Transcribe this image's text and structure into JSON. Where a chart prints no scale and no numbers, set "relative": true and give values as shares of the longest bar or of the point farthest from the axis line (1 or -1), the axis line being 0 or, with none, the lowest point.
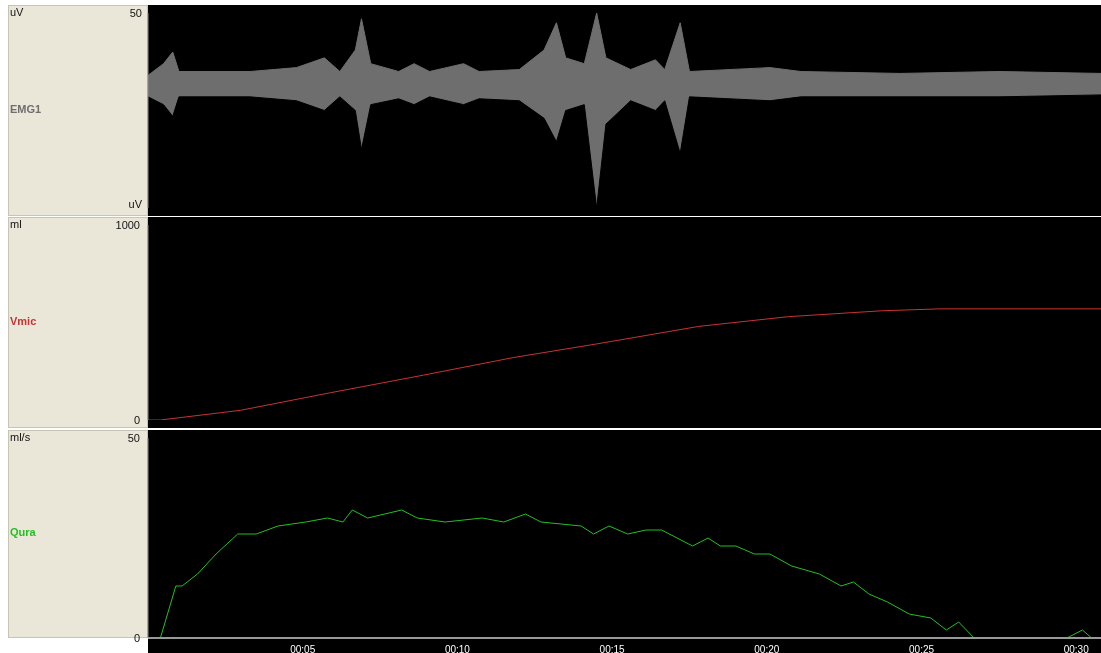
{
  "chart_data": [
    {
      "type": "area",
      "relative": true,
      "ylabel": "uV",
      "annotations": [
        "50",
        "uV"
      ],
      "tick_labels": false,
      "xlim": [
        0,
        30.8
      ],
      "x": [
        0,
        0.5,
        0.8,
        1,
        3.3,
        4.8,
        5.7,
        6.2,
        6.7,
        6.9,
        7.2,
        8.1,
        8.6,
        9.1,
        10.2,
        10.7,
        12,
        12.8,
        13.2,
        13.5,
        14.1,
        14.5,
        14.8,
        15.6,
        16.4,
        16.7,
        17.2,
        17.5,
        20.1,
        21.1,
        24.3,
        27.5,
        30.8
      ],
      "series": [
        {
          "name": "EMG1",
          "color": "#6e6e6e",
          "values": [
            0.68,
            0.74,
            0.8,
            0.7,
            0.7,
            0.72,
            0.77,
            0.7,
            0.81,
            0.97,
            0.74,
            0.7,
            0.74,
            0.7,
            0.74,
            0.7,
            0.71,
            0.81,
            0.95,
            0.77,
            0.74,
            1,
            0.77,
            0.71,
            0.76,
            0.71,
            0.95,
            0.7,
            0.72,
            0.7,
            0.69,
            0.7,
            0.69
          ]
        },
        {
          "color": "#000000",
          "values": [
            0.57,
            0.53,
            0.47,
            0.57,
            0.57,
            0.55,
            0.5,
            0.57,
            0.5,
            0.3,
            0.53,
            0.56,
            0.53,
            0.57,
            0.53,
            0.56,
            0.55,
            0.46,
            0.34,
            0.5,
            0.53,
            0,
            0.43,
            0.55,
            0.5,
            0.55,
            0.28,
            0.57,
            0.55,
            0.57,
            0.57,
            0.57,
            0.58
          ]
        }
      ]
    },
    {
      "type": "line",
      "ylabel": "ml",
      "ylim": [
        0,
        1000
      ],
      "yticks": [
        0,
        1000
      ],
      "xlim": [
        0,
        30.8
      ],
      "tick_labels": "y",
      "x": [
        0,
        0.4,
        3,
        5.9,
        8.9,
        11.8,
        14.5,
        17.8,
        20.7,
        23.7,
        25.6,
        30.8
      ],
      "series": [
        {
          "name": "Vmic",
          "color": "#c83232",
          "values": [
            0,
            0,
            50,
            140,
            230,
            320,
            390,
            480,
            530,
            560,
            570,
            570
          ]
        }
      ]
    },
    {
      "type": "line",
      "ylabel": "ml/s",
      "ylim": [
        0,
        50
      ],
      "yticks": [
        0,
        50
      ],
      "xlim": [
        0,
        30.8
      ],
      "xticks": [
        {
          "value": 5,
          "label": "00:05"
        },
        {
          "value": 10,
          "label": "00:10"
        },
        {
          "value": 15,
          "label": "00:15"
        },
        {
          "value": 20,
          "label": "00:20"
        },
        {
          "value": 25,
          "label": "00:25"
        },
        {
          "value": 30,
          "label": "00:30"
        }
      ],
      "x": [
        0,
        0.4,
        0.9,
        1.1,
        1.6,
        2.2,
        2.9,
        3.5,
        4.2,
        5.1,
        5.8,
        6.3,
        6.6,
        7.1,
        8.2,
        8.7,
        9.6,
        10.8,
        11.5,
        12.2,
        12.7,
        14,
        14.4,
        14.9,
        15.5,
        16.1,
        16.6,
        17.6,
        18.1,
        18.5,
        19,
        19.6,
        20.1,
        20.8,
        21.7,
        22.4,
        22.8,
        23.3,
        23.9,
        24.6,
        25.3,
        25.8,
        26.2,
        26.7,
        29.7,
        30.2,
        30.5,
        30.8
      ],
      "series": [
        {
          "name": "Qura",
          "color": "#22c022",
          "values": [
            0,
            0,
            13,
            13,
            16,
            21,
            26,
            26,
            28,
            29,
            30,
            29,
            32,
            30,
            32,
            30,
            29,
            30,
            29,
            31,
            29,
            28,
            26,
            28,
            26,
            27,
            27,
            23,
            25,
            23,
            23,
            21,
            21,
            18,
            16,
            13,
            14,
            11,
            9,
            6,
            5,
            2,
            4,
            0,
            0,
            2,
            0,
            0
          ]
        }
      ]
    }
  ]
}
